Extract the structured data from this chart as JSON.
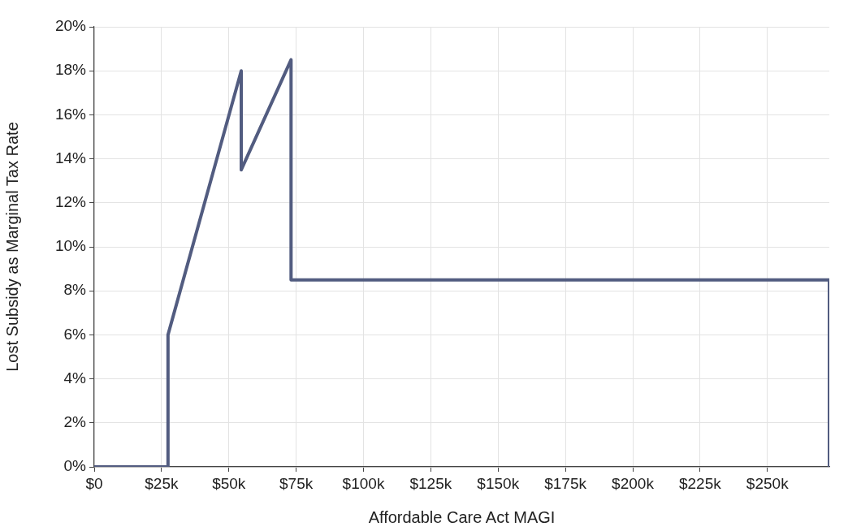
{
  "chart_data": {
    "type": "line",
    "xlabel": "Affordable Care Act MAGI",
    "ylabel": "Lost Subsidy as Marginal Tax Rate",
    "x": [
      0,
      27400,
      27400,
      54600,
      54600,
      73100,
      73100,
      273000,
      273000
    ],
    "series": [
      {
        "color": "#525c80",
        "values": [
          0,
          0,
          6,
          18,
          13.5,
          18.5,
          8.5,
          8.5,
          0
        ]
      }
    ],
    "xlim": [
      0,
      273000
    ],
    "xticks": [
      {
        "value": 0,
        "label": "$0"
      },
      {
        "value": 25000,
        "label": "$25k"
      },
      {
        "value": 50000,
        "label": "$50k"
      },
      {
        "value": 75000,
        "label": "$75k"
      },
      {
        "value": 100000,
        "label": "$100k"
      },
      {
        "value": 125000,
        "label": "$125k"
      },
      {
        "value": 150000,
        "label": "$150k"
      },
      {
        "value": 175000,
        "label": "$175k"
      },
      {
        "value": 200000,
        "label": "$200k"
      },
      {
        "value": 225000,
        "label": "$225k"
      },
      {
        "value": 250000,
        "label": "$250k"
      }
    ],
    "ylim": [
      0,
      20
    ],
    "yticks": [
      {
        "value": 0,
        "label": "0%"
      },
      {
        "value": 2,
        "label": "2%"
      },
      {
        "value": 4,
        "label": "4%"
      },
      {
        "value": 6,
        "label": "6%"
      },
      {
        "value": 8,
        "label": "8%"
      },
      {
        "value": 10,
        "label": "10%"
      },
      {
        "value": 12,
        "label": "12%"
      },
      {
        "value": 14,
        "label": "14%"
      },
      {
        "value": 16,
        "label": "16%"
      },
      {
        "value": 18,
        "label": "18%"
      },
      {
        "value": 20,
        "label": "20%"
      }
    ],
    "grid": true,
    "legend": false,
    "marker": "none",
    "line_style": "solid"
  }
}
